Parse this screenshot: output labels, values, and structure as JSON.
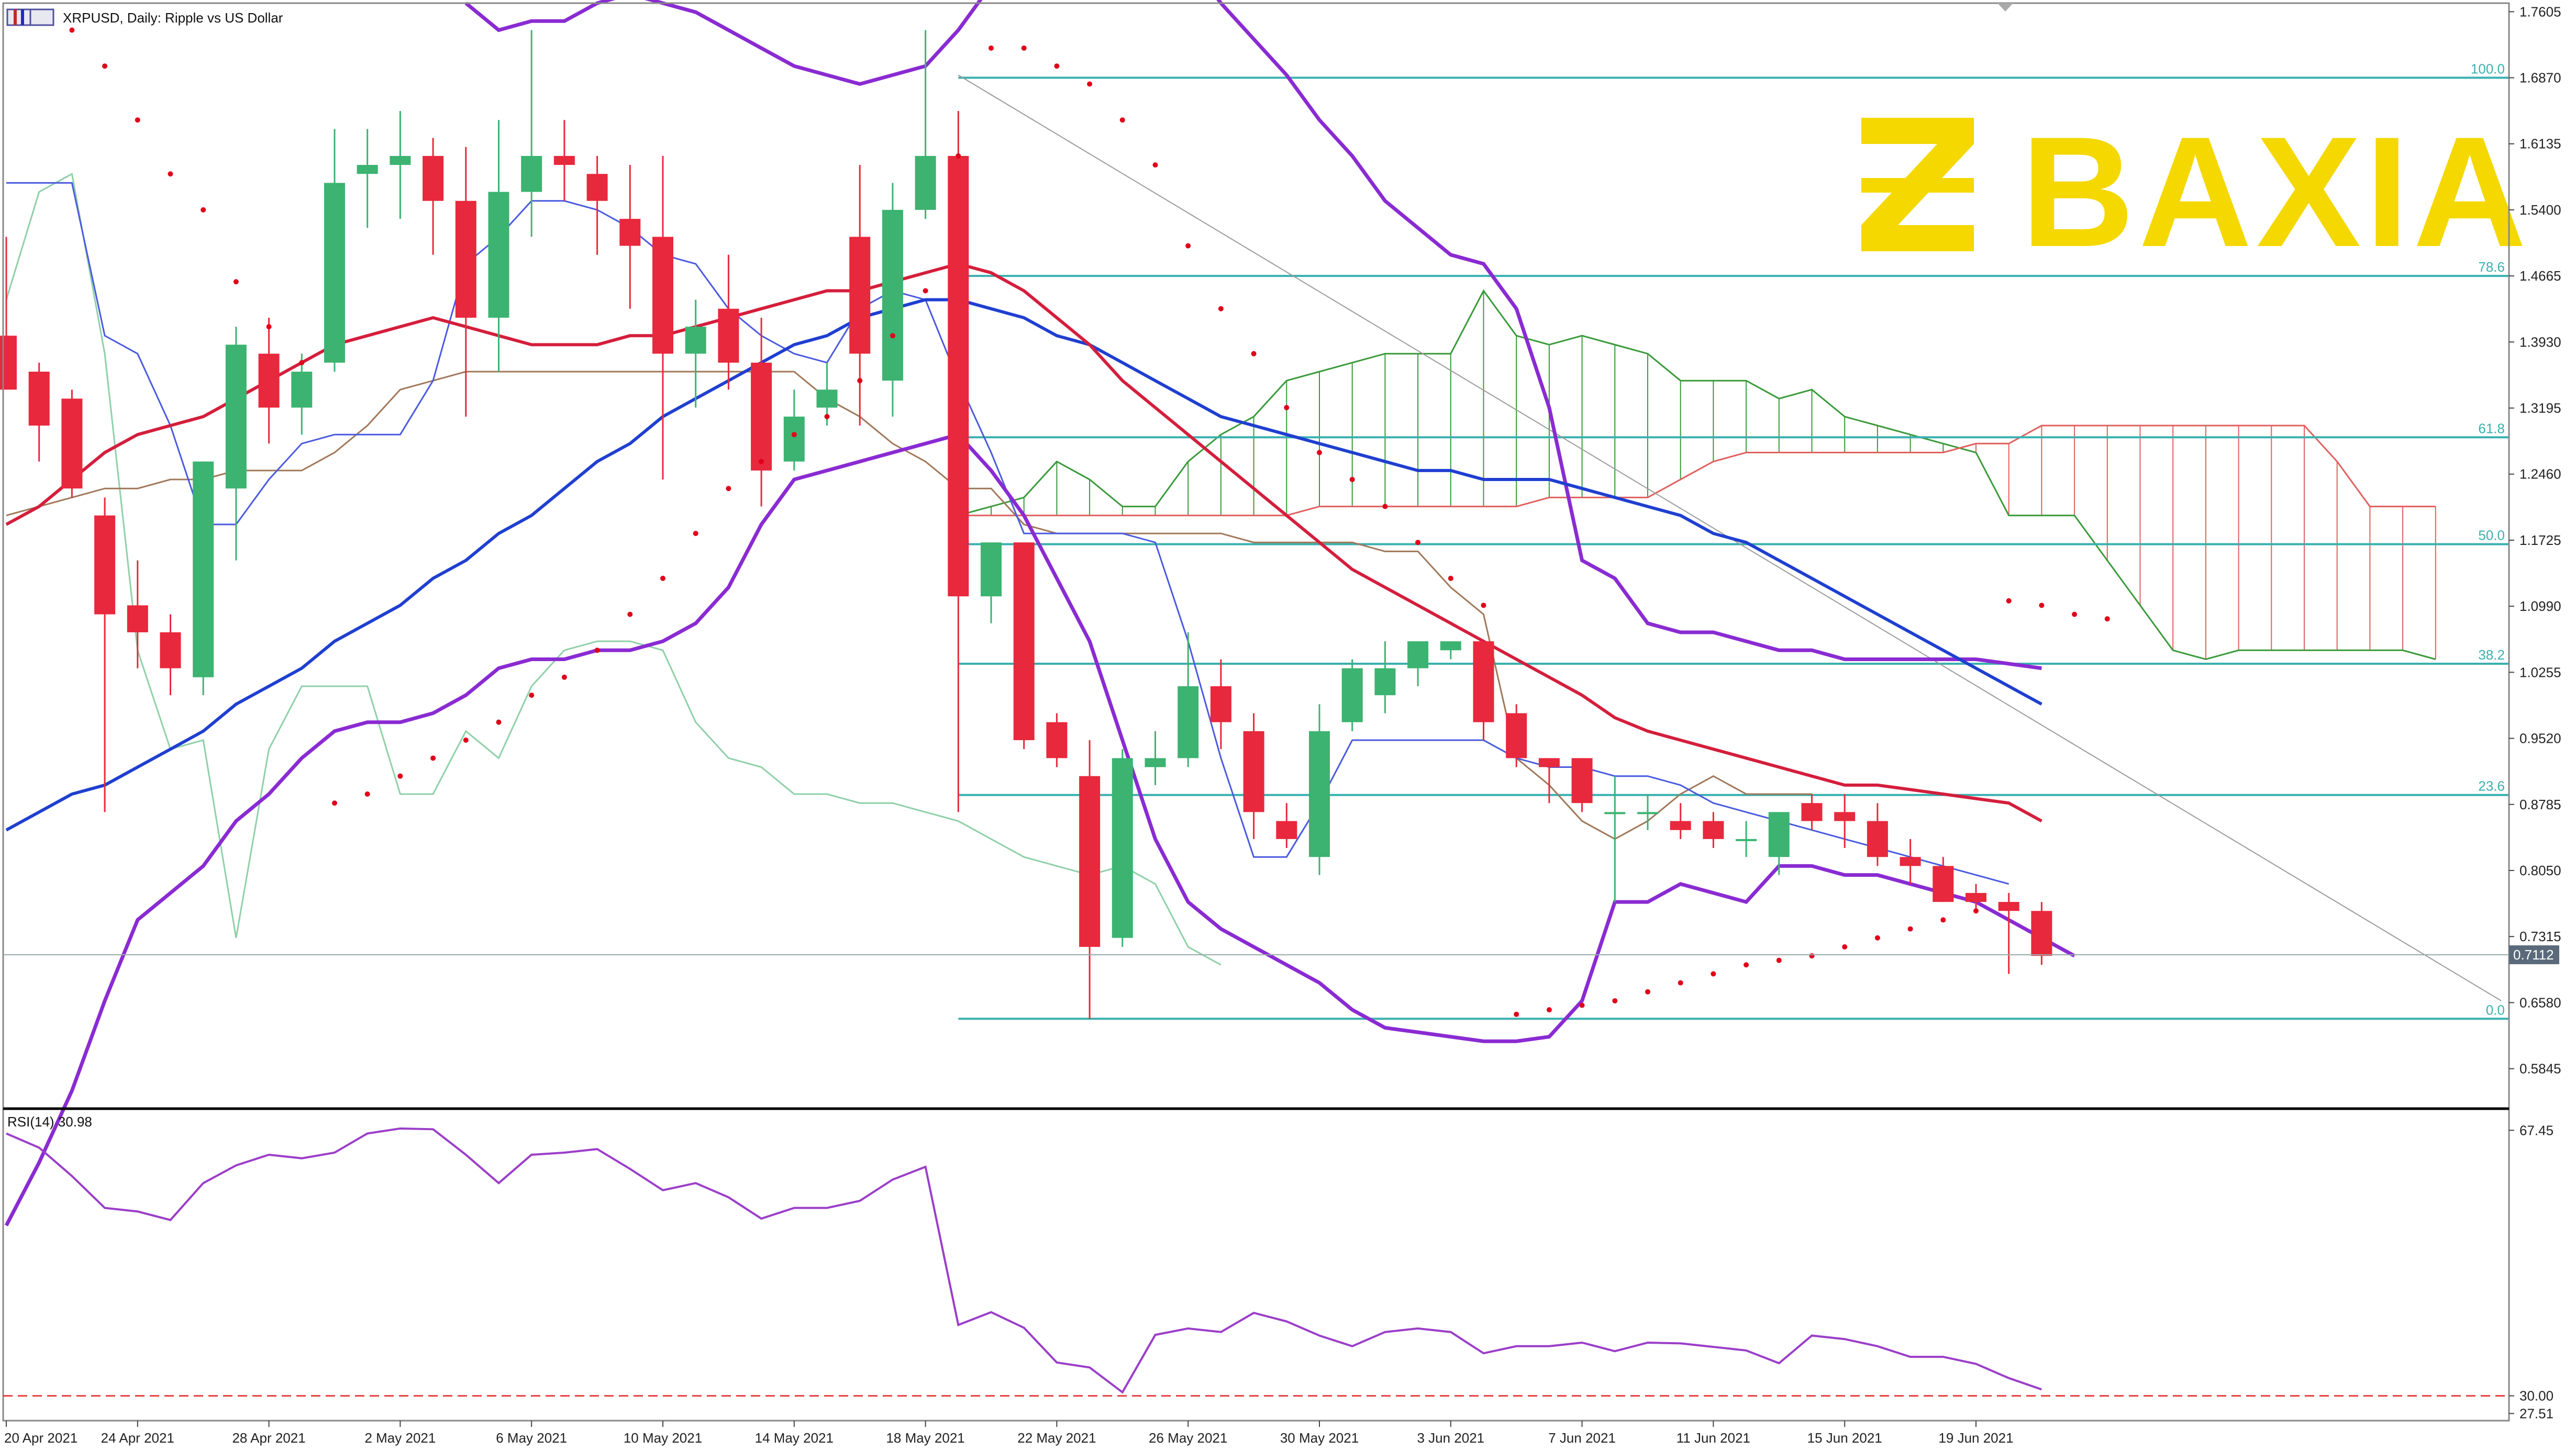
{
  "header": {
    "symbol_line": "XRPUSD, Daily:  Ripple vs US Dollar"
  },
  "logo": {
    "text": "BAXIA",
    "color": "#f5d800"
  },
  "colors": {
    "bull": "#3cb371",
    "bear": "#e8283c",
    "ma_red": "#d41e3c",
    "ma_blue": "#1f3fd0",
    "bollinger": "#8a2bd2",
    "fib": "#3ab0b0",
    "tenkan": "#4a5ae0",
    "kijun": "#a0785a",
    "chikou": "#8fd0a8",
    "span_a": "#3a9a3a",
    "span_b": "#e06060",
    "sar": "#e0001a",
    "rsi": "#9b3ec9"
  },
  "price_axis": {
    "ticks": [
      "1.7605",
      "1.6870",
      "1.6135",
      "1.5400",
      "1.4665",
      "1.3930",
      "1.3195",
      "1.2460",
      "1.1725",
      "1.0990",
      "1.0255",
      "0.9520",
      "0.8785",
      "0.8050",
      "0.7315",
      "0.6580",
      "0.5845"
    ],
    "current_price": "0.7112"
  },
  "rsi_axis": {
    "ticks": [
      "67.45",
      "30.00",
      "27.51"
    ]
  },
  "rsi_label": "RSI(14) 30.98",
  "date_axis": [
    "20 Apr 2021",
    "24 Apr 2021",
    "28 Apr 2021",
    "2 May 2021",
    "6 May 2021",
    "10 May 2021",
    "14 May 2021",
    "18 May 2021",
    "22 May 2021",
    "26 May 2021",
    "30 May 2021",
    "3 Jun 2021",
    "7 Jun 2021",
    "11 Jun 2021",
    "15 Jun 2021",
    "19 Jun 2021"
  ],
  "fib_levels": [
    {
      "label": "100.0",
      "price": 1.687
    },
    {
      "label": "78.6",
      "price": 1.4665
    },
    {
      "label": "61.8",
      "price": 1.287
    },
    {
      "label": "50.0",
      "price": 1.168
    },
    {
      "label": "38.2",
      "price": 1.035
    },
    {
      "label": "23.6",
      "price": 0.889
    },
    {
      "label": "0.0",
      "price": 0.64
    }
  ],
  "chart_data": {
    "type": "candlestick",
    "title": "XRPUSD, Daily:  Ripple vs US Dollar",
    "ylim": [
      0.54,
      1.77
    ],
    "rsi_ylim": [
      26.5,
      70.5
    ],
    "candles": [
      {
        "o": 1.4,
        "h": 1.51,
        "l": 1.34,
        "c": 1.34
      },
      {
        "o": 1.36,
        "h": 1.37,
        "l": 1.26,
        "c": 1.3
      },
      {
        "o": 1.33,
        "h": 1.34,
        "l": 1.22,
        "c": 1.23
      },
      {
        "o": 1.2,
        "h": 1.22,
        "l": 0.87,
        "c": 1.09
      },
      {
        "o": 1.1,
        "h": 1.15,
        "l": 1.03,
        "c": 1.07
      },
      {
        "o": 1.07,
        "h": 1.09,
        "l": 1.0,
        "c": 1.03
      },
      {
        "o": 1.02,
        "h": 1.26,
        "l": 1.0,
        "c": 1.26
      },
      {
        "o": 1.23,
        "h": 1.41,
        "l": 1.15,
        "c": 1.39
      },
      {
        "o": 1.38,
        "h": 1.42,
        "l": 1.28,
        "c": 1.32
      },
      {
        "o": 1.32,
        "h": 1.38,
        "l": 1.29,
        "c": 1.36
      },
      {
        "o": 1.37,
        "h": 1.63,
        "l": 1.36,
        "c": 1.57
      },
      {
        "o": 1.58,
        "h": 1.63,
        "l": 1.52,
        "c": 1.59
      },
      {
        "o": 1.59,
        "h": 1.65,
        "l": 1.53,
        "c": 1.6
      },
      {
        "o": 1.6,
        "h": 1.62,
        "l": 1.49,
        "c": 1.55
      },
      {
        "o": 1.55,
        "h": 1.61,
        "l": 1.31,
        "c": 1.42
      },
      {
        "o": 1.42,
        "h": 1.64,
        "l": 1.36,
        "c": 1.56
      },
      {
        "o": 1.56,
        "h": 1.74,
        "l": 1.51,
        "c": 1.6
      },
      {
        "o": 1.6,
        "h": 1.64,
        "l": 1.55,
        "c": 1.59
      },
      {
        "o": 1.58,
        "h": 1.6,
        "l": 1.49,
        "c": 1.55
      },
      {
        "o": 1.53,
        "h": 1.59,
        "l": 1.43,
        "c": 1.5
      },
      {
        "o": 1.51,
        "h": 1.6,
        "l": 1.24,
        "c": 1.38
      },
      {
        "o": 1.38,
        "h": 1.44,
        "l": 1.32,
        "c": 1.41
      },
      {
        "o": 1.43,
        "h": 1.49,
        "l": 1.34,
        "c": 1.37
      },
      {
        "o": 1.37,
        "h": 1.42,
        "l": 1.21,
        "c": 1.25
      },
      {
        "o": 1.26,
        "h": 1.34,
        "l": 1.25,
        "c": 1.31
      },
      {
        "o": 1.32,
        "h": 1.37,
        "l": 1.3,
        "c": 1.34
      },
      {
        "o": 1.51,
        "h": 1.59,
        "l": 1.3,
        "c": 1.38
      },
      {
        "o": 1.35,
        "h": 1.57,
        "l": 1.31,
        "c": 1.54
      },
      {
        "o": 1.54,
        "h": 1.74,
        "l": 1.53,
        "c": 1.6
      },
      {
        "o": 1.6,
        "h": 1.65,
        "l": 0.87,
        "c": 1.11
      },
      {
        "o": 1.11,
        "h": 1.17,
        "l": 1.08,
        "c": 1.17
      },
      {
        "o": 1.17,
        "h": 1.17,
        "l": 0.94,
        "c": 0.95
      },
      {
        "o": 0.97,
        "h": 0.98,
        "l": 0.92,
        "c": 0.93
      },
      {
        "o": 0.91,
        "h": 0.95,
        "l": 0.64,
        "c": 0.72
      },
      {
        "o": 0.73,
        "h": 0.94,
        "l": 0.72,
        "c": 0.93
      },
      {
        "o": 0.92,
        "h": 0.96,
        "l": 0.9,
        "c": 0.93
      },
      {
        "o": 0.93,
        "h": 1.07,
        "l": 0.92,
        "c": 1.01
      },
      {
        "o": 1.01,
        "h": 1.04,
        "l": 0.94,
        "c": 0.97
      },
      {
        "o": 0.96,
        "h": 0.98,
        "l": 0.84,
        "c": 0.87
      },
      {
        "o": 0.86,
        "h": 0.88,
        "l": 0.83,
        "c": 0.84
      },
      {
        "o": 0.82,
        "h": 0.99,
        "l": 0.8,
        "c": 0.96
      },
      {
        "o": 0.97,
        "h": 1.04,
        "l": 0.96,
        "c": 1.03
      },
      {
        "o": 1.0,
        "h": 1.06,
        "l": 0.98,
        "c": 1.03
      },
      {
        "o": 1.03,
        "h": 1.06,
        "l": 1.01,
        "c": 1.06
      },
      {
        "o": 1.05,
        "h": 1.06,
        "l": 1.04,
        "c": 1.06
      },
      {
        "o": 1.06,
        "h": 1.06,
        "l": 0.95,
        "c": 0.97
      },
      {
        "o": 0.98,
        "h": 0.99,
        "l": 0.92,
        "c": 0.93
      },
      {
        "o": 0.93,
        "h": 0.93,
        "l": 0.88,
        "c": 0.92
      },
      {
        "o": 0.93,
        "h": 0.93,
        "l": 0.87,
        "c": 0.88
      },
      {
        "o": 0.87,
        "h": 0.91,
        "l": 0.77,
        "c": 0.87
      },
      {
        "o": 0.87,
        "h": 0.89,
        "l": 0.85,
        "c": 0.87
      },
      {
        "o": 0.86,
        "h": 0.88,
        "l": 0.84,
        "c": 0.85
      },
      {
        "o": 0.86,
        "h": 0.87,
        "l": 0.83,
        "c": 0.84
      },
      {
        "o": 0.84,
        "h": 0.86,
        "l": 0.82,
        "c": 0.84
      },
      {
        "o": 0.82,
        "h": 0.87,
        "l": 0.8,
        "c": 0.87
      },
      {
        "o": 0.88,
        "h": 0.89,
        "l": 0.85,
        "c": 0.86
      },
      {
        "o": 0.87,
        "h": 0.89,
        "l": 0.83,
        "c": 0.86
      },
      {
        "o": 0.86,
        "h": 0.88,
        "l": 0.81,
        "c": 0.82
      },
      {
        "o": 0.82,
        "h": 0.84,
        "l": 0.79,
        "c": 0.81
      },
      {
        "o": 0.81,
        "h": 0.82,
        "l": 0.77,
        "c": 0.77
      },
      {
        "o": 0.78,
        "h": 0.79,
        "l": 0.76,
        "c": 0.77
      },
      {
        "o": 0.77,
        "h": 0.78,
        "l": 0.69,
        "c": 0.76
      },
      {
        "o": 0.76,
        "h": 0.77,
        "l": 0.7,
        "c": 0.71
      }
    ],
    "ma_red": [
      1.19,
      1.21,
      1.24,
      1.27,
      1.29,
      1.3,
      1.31,
      1.33,
      1.35,
      1.37,
      1.39,
      1.4,
      1.41,
      1.42,
      1.41,
      1.4,
      1.39,
      1.39,
      1.39,
      1.4,
      1.4,
      1.41,
      1.42,
      1.43,
      1.44,
      1.45,
      1.45,
      1.46,
      1.47,
      1.48,
      1.47,
      1.45,
      1.42,
      1.39,
      1.35,
      1.32,
      1.29,
      1.26,
      1.23,
      1.2,
      1.17,
      1.14,
      1.12,
      1.1,
      1.08,
      1.06,
      1.04,
      1.02,
      1.0,
      0.975,
      0.96,
      0.95,
      0.94,
      0.93,
      0.92,
      0.91,
      0.9,
      0.9,
      0.895,
      0.89,
      0.885,
      0.88,
      0.86
    ],
    "ma_blue": [
      0.85,
      0.87,
      0.89,
      0.9,
      0.92,
      0.94,
      0.96,
      0.99,
      1.01,
      1.03,
      1.06,
      1.08,
      1.1,
      1.13,
      1.15,
      1.18,
      1.2,
      1.23,
      1.26,
      1.28,
      1.31,
      1.33,
      1.35,
      1.37,
      1.39,
      1.4,
      1.42,
      1.43,
      1.44,
      1.44,
      1.43,
      1.42,
      1.4,
      1.39,
      1.37,
      1.35,
      1.33,
      1.31,
      1.3,
      1.29,
      1.28,
      1.27,
      1.26,
      1.25,
      1.25,
      1.24,
      1.24,
      1.24,
      1.23,
      1.22,
      1.21,
      1.2,
      1.18,
      1.17,
      1.15,
      1.13,
      1.11,
      1.09,
      1.07,
      1.05,
      1.03,
      1.01,
      0.99
    ],
    "bollinger_upper": [
      null,
      null,
      null,
      null,
      null,
      null,
      null,
      null,
      null,
      null,
      null,
      null,
      null,
      null,
      1.77,
      1.74,
      1.75,
      1.75,
      1.77,
      1.78,
      1.77,
      1.76,
      1.74,
      1.72,
      1.7,
      1.69,
      1.68,
      1.69,
      1.7,
      1.74,
      1.79,
      1.85,
      1.9,
      1.95,
      1.92,
      1.87,
      1.82,
      1.77,
      1.73,
      1.69,
      1.64,
      1.6,
      1.55,
      1.52,
      1.49,
      1.48,
      1.43,
      1.32,
      1.15,
      1.13,
      1.08,
      1.07,
      1.07,
      1.06,
      1.05,
      1.05,
      1.04,
      1.04,
      1.04,
      1.04,
      1.04,
      1.035,
      1.03
    ],
    "bollinger_lower": [
      0.41,
      0.48,
      0.56,
      0.66,
      0.75,
      0.78,
      0.81,
      0.86,
      0.89,
      0.93,
      0.96,
      0.97,
      0.97,
      0.98,
      1.0,
      1.03,
      1.04,
      1.04,
      1.05,
      1.05,
      1.06,
      1.08,
      1.12,
      1.19,
      1.24,
      1.25,
      1.26,
      1.27,
      1.28,
      1.29,
      1.25,
      1.2,
      1.13,
      1.06,
      0.95,
      0.84,
      0.77,
      0.74,
      0.72,
      0.7,
      0.68,
      0.65,
      0.63,
      0.625,
      0.62,
      0.615,
      0.615,
      0.62,
      0.66,
      0.77,
      0.77,
      0.79,
      0.78,
      0.77,
      0.81,
      0.81,
      0.8,
      0.8,
      0.79,
      0.78,
      0.77,
      0.75,
      0.73,
      0.71
    ],
    "tenkan": [
      1.57,
      1.57,
      1.57,
      1.4,
      1.38,
      1.3,
      1.19,
      1.19,
      1.24,
      1.28,
      1.29,
      1.29,
      1.29,
      1.35,
      1.48,
      1.51,
      1.55,
      1.55,
      1.54,
      1.52,
      1.49,
      1.48,
      1.43,
      1.4,
      1.38,
      1.37,
      1.43,
      1.45,
      1.44,
      1.35,
      1.27,
      1.18,
      1.18,
      1.18,
      1.18,
      1.17,
      1.06,
      0.93,
      0.82,
      0.82,
      0.88,
      0.95,
      0.95,
      0.95,
      0.95,
      0.95,
      0.93,
      0.92,
      0.92,
      0.91,
      0.91,
      0.9,
      0.88,
      0.87,
      0.86,
      0.85,
      0.84,
      0.83,
      0.82,
      0.81,
      0.8,
      0.79
    ],
    "kijun": [
      1.2,
      1.21,
      1.22,
      1.23,
      1.23,
      1.24,
      1.24,
      1.25,
      1.25,
      1.25,
      1.27,
      1.3,
      1.34,
      1.35,
      1.36,
      1.36,
      1.36,
      1.36,
      1.36,
      1.36,
      1.36,
      1.36,
      1.36,
      1.36,
      1.36,
      1.33,
      1.31,
      1.28,
      1.26,
      1.23,
      1.23,
      1.19,
      1.18,
      1.18,
      1.18,
      1.18,
      1.18,
      1.18,
      1.17,
      1.17,
      1.17,
      1.17,
      1.16,
      1.16,
      1.12,
      1.09,
      0.93,
      0.9,
      0.86,
      0.84,
      0.86,
      0.89,
      0.91,
      0.89,
      0.89,
      0.89
    ],
    "chikou": [
      1.44,
      1.56,
      1.58,
      1.38,
      1.05,
      0.94,
      0.95,
      0.73,
      0.94,
      1.01,
      1.01,
      1.01,
      0.89,
      0.89,
      0.96,
      0.93,
      1.01,
      1.05,
      1.06,
      1.06,
      1.05,
      0.97,
      0.93,
      0.92,
      0.89,
      0.89,
      0.88,
      0.88,
      0.87,
      0.86,
      0.84,
      0.82,
      0.81,
      0.8,
      0.81,
      0.79,
      0.72,
      0.7
    ],
    "span_a_start": 29,
    "span_a": [
      1.2,
      1.21,
      1.22,
      1.26,
      1.24,
      1.21,
      1.21,
      1.26,
      1.29,
      1.31,
      1.35,
      1.36,
      1.37,
      1.38,
      1.38,
      1.38,
      1.45,
      1.4,
      1.39,
      1.4,
      1.39,
      1.38,
      1.35,
      1.35,
      1.35,
      1.33,
      1.34,
      1.31,
      1.3,
      1.29,
      1.28,
      1.27,
      1.2,
      1.2,
      1.2,
      1.15,
      1.1,
      1.05,
      1.04,
      1.05,
      1.05,
      1.05,
      1.05,
      1.05,
      1.05,
      1.04
    ],
    "span_b": [
      1.2,
      1.2,
      1.2,
      1.2,
      1.2,
      1.2,
      1.2,
      1.2,
      1.2,
      1.2,
      1.2,
      1.21,
      1.21,
      1.21,
      1.21,
      1.21,
      1.21,
      1.21,
      1.22,
      1.22,
      1.22,
      1.22,
      1.24,
      1.26,
      1.27,
      1.27,
      1.27,
      1.27,
      1.27,
      1.27,
      1.27,
      1.28,
      1.28,
      1.3,
      1.3,
      1.3,
      1.3,
      1.3,
      1.3,
      1.3,
      1.3,
      1.3,
      1.26,
      1.21,
      1.21,
      1.21
    ],
    "sar": [
      null,
      null,
      1.74,
      1.7,
      1.64,
      1.58,
      1.54,
      1.46,
      1.41,
      1.37,
      0.88,
      0.89,
      0.91,
      0.93,
      0.95,
      0.97,
      1.0,
      1.02,
      1.05,
      1.09,
      1.13,
      1.18,
      1.23,
      1.26,
      1.29,
      1.31,
      1.35,
      1.4,
      1.45,
      1.6,
      1.72,
      1.72,
      1.7,
      1.68,
      1.64,
      1.59,
      1.5,
      1.43,
      1.38,
      1.32,
      1.27,
      1.24,
      1.21,
      1.17,
      1.13,
      1.1,
      0.645,
      0.65,
      0.655,
      0.66,
      0.67,
      0.68,
      0.69,
      0.7,
      0.705,
      0.71,
      0.72,
      0.73,
      0.74,
      0.75,
      0.76,
      1.105,
      1.1,
      1.09,
      1.085
    ],
    "trendline": {
      "from": [
        29,
        1.69
      ],
      "to": [
        76,
        0.66
      ]
    },
    "rsi": [
      67.0,
      65.0,
      61.0,
      56.5,
      56.0,
      54.8,
      60.0,
      62.5,
      64.0,
      63.5,
      64.3,
      67.0,
      67.7,
      67.6,
      64.0,
      60.0,
      64.0,
      64.3,
      64.8,
      62.0,
      59.0,
      60.0,
      58.0,
      55.0,
      56.5,
      56.5,
      57.5,
      60.5,
      62.3,
      40.0,
      41.8,
      39.6,
      34.7,
      34.0,
      30.5,
      38.6,
      39.5,
      39.0,
      41.7,
      40.5,
      38.5,
      37.0,
      39.0,
      39.5,
      39.0,
      36.0,
      37.0,
      37.0,
      37.5,
      36.3,
      37.5,
      37.4,
      36.9,
      36.4,
      34.6,
      38.5,
      38.0,
      37.0,
      35.5,
      35.5,
      34.5,
      32.5,
      30.9
    ],
    "rsi_level": 30
  }
}
